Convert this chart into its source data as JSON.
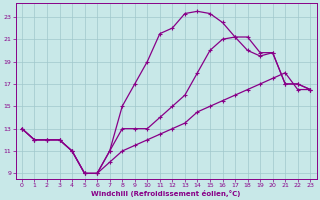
{
  "xlabel": "Windchill (Refroidissement éolien,°C)",
  "bg_color": "#c8e8e8",
  "grid_color": "#a0c8cc",
  "line_color": "#880088",
  "xlim": [
    -0.5,
    23.5
  ],
  "ylim": [
    8.5,
    24.2
  ],
  "xticks": [
    0,
    1,
    2,
    3,
    4,
    5,
    6,
    7,
    8,
    9,
    10,
    11,
    12,
    13,
    14,
    15,
    16,
    17,
    18,
    19,
    20,
    21,
    22,
    23
  ],
  "yticks": [
    9,
    11,
    13,
    15,
    17,
    19,
    21,
    23
  ],
  "curve_upper_x": [
    0,
    1,
    2,
    3,
    4,
    5,
    6,
    7,
    8,
    9,
    10,
    11,
    12,
    13,
    14,
    15,
    16,
    17,
    18,
    19,
    20,
    21,
    22,
    23
  ],
  "curve_upper_y": [
    13,
    12,
    12,
    12,
    11,
    9,
    9,
    11,
    15,
    17,
    19,
    21.5,
    22,
    23.3,
    23.5,
    23.3,
    22.5,
    21.2,
    21.2,
    19.8,
    19.8,
    17,
    17,
    16.5
  ],
  "curve_mid_x": [
    0,
    1,
    2,
    3,
    4,
    5,
    6,
    7,
    8,
    9,
    10,
    11,
    12,
    13,
    14,
    15,
    16,
    17,
    18,
    19,
    20,
    21,
    22,
    23
  ],
  "curve_mid_y": [
    13,
    12,
    12,
    12,
    11,
    9,
    9,
    11,
    13,
    13,
    13,
    14,
    15,
    16,
    18,
    20,
    21,
    21.2,
    20,
    19.5,
    19.8,
    17,
    17,
    16.5
  ],
  "curve_lower_x": [
    0,
    1,
    2,
    3,
    4,
    5,
    6,
    7,
    8,
    9,
    10,
    11,
    12,
    13,
    14,
    15,
    16,
    17,
    18,
    19,
    20,
    21,
    22,
    23
  ],
  "curve_lower_y": [
    13,
    12,
    12,
    12,
    11,
    9,
    9,
    10,
    11,
    11.5,
    12,
    12.5,
    13,
    13.5,
    14.5,
    15,
    15.5,
    16,
    16.5,
    17,
    17.5,
    18,
    16.5,
    16.5
  ]
}
